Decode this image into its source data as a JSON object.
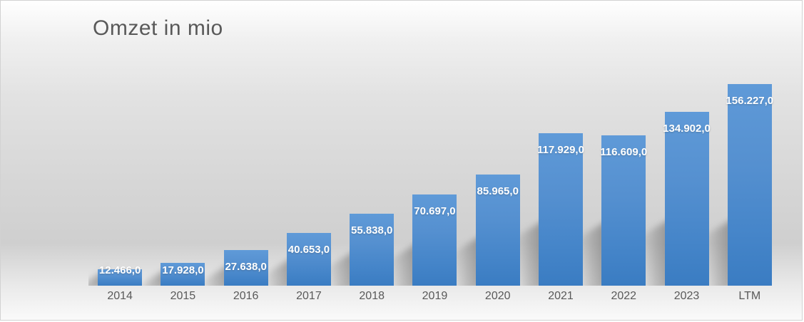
{
  "title": "Omzet in mio",
  "colors": {
    "bar_gradient_top": "#5f9ad8",
    "bar_gradient_bottom": "#3a7cc2",
    "title_text": "#595959",
    "axis_text": "#595959",
    "value_label_text": "#ffffff",
    "background_mid_grey": "#d0d0d0",
    "border": "#d2d2d2"
  },
  "chart_data": {
    "type": "bar",
    "title": "Omzet in mio",
    "categories": [
      "2014",
      "2015",
      "2016",
      "2017",
      "2018",
      "2019",
      "2020",
      "2021",
      "2022",
      "2023",
      "LTM"
    ],
    "values": [
      12466.0,
      17928.0,
      27638.0,
      40653.0,
      55838.0,
      70697.0,
      85965.0,
      117929.0,
      116609.0,
      134902.0,
      156227.0
    ],
    "value_labels": [
      "12.466,0",
      "17.928,0",
      "27.638,0",
      "40.653,0",
      "55.838,0",
      "70.697,0",
      "85.965,0",
      "117.929,0",
      "116.609,0",
      "134.902,0",
      "156.227,0"
    ],
    "xlabel": "",
    "ylabel": "",
    "ylim": [
      0,
      160000
    ],
    "grid": false,
    "legend": false,
    "data_label_position": "inside-end",
    "number_format": "thousands-dot-decimal-comma",
    "series_name": "Omzet"
  }
}
